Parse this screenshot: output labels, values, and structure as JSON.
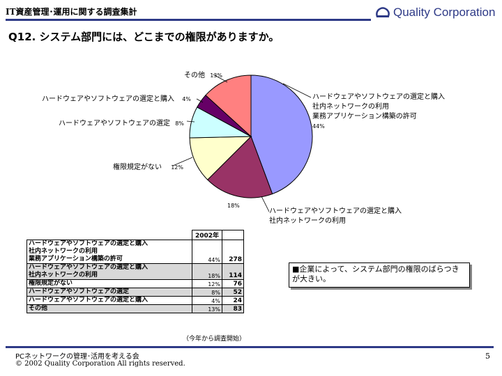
{
  "header": {
    "title": "IT資産管理･運用に関する調査集計",
    "logo_text": "Quality Corporation",
    "logo_icon": "qc-logo-icon",
    "rule_color": "#2e3a87"
  },
  "question": "Q12. システム部門には、どこまでの権限がありますか。",
  "chart_data": {
    "type": "pie",
    "title": "",
    "slices": [
      {
        "label": [
          "ハードウェアやソフトウェアの選定と購入",
          "社内ネットワークの利用",
          "業務アプリケーション構築の許可"
        ],
        "pct_label": "44%",
        "value": 278,
        "color": "#9999ff"
      },
      {
        "label": [
          "ハードウェアやソフトウェアの選定と購入",
          "社内ネットワークの利用"
        ],
        "pct_label": "18%",
        "value": 114,
        "color": "#993366"
      },
      {
        "label": [
          "権限規定がない"
        ],
        "pct_label": "12%",
        "value": 76,
        "color": "#ffffcc"
      },
      {
        "label": [
          "ハードウェアやソフトウェアの選定"
        ],
        "pct_label": "8%",
        "value": 52,
        "color": "#ccffff"
      },
      {
        "label": [
          "ハードウェアやソフトウェアの選定と購入"
        ],
        "pct_label": "4%",
        "value": 24,
        "color": "#660066"
      },
      {
        "label": [
          "その他"
        ],
        "pct_label": "13%",
        "value": 83,
        "color": "#ff8080"
      }
    ]
  },
  "table": {
    "year_header": "2002年",
    "rows": [
      {
        "label": [
          "ハードウェアやソフトウェアの選定と購入",
          "社内ネットワークの利用",
          "業務アプリケーション構築の許可"
        ],
        "pct": "44%",
        "count": "278",
        "shaded": false
      },
      {
        "label": [
          "ハードウェアやソフトウェアの選定と購入",
          "社内ネットワークの利用"
        ],
        "pct": "18%",
        "count": "114",
        "shaded": true
      },
      {
        "label": [
          "権限規定がない"
        ],
        "pct": "12%",
        "count": "76",
        "shaded": false
      },
      {
        "label": [
          "ハードウェアやソフトウェアの選定"
        ],
        "pct": "8%",
        "count": "52",
        "shaded": true
      },
      {
        "label": [
          "ハードウェアやソフトウェアの選定と購入"
        ],
        "pct": "4%",
        "count": "24",
        "shaded": false
      },
      {
        "label": [
          "その他"
        ],
        "pct": "13%",
        "count": "83",
        "shaded": true
      }
    ],
    "note": "（今年から調査開始）"
  },
  "callout": "■企業によって、システム部門の権限のばらつきが大きい。",
  "footer": {
    "line1": "PCネットワークの管理･活用を考える会",
    "line2": "© 2002 Quality Corporation  All rights reserved.",
    "page": "5"
  }
}
